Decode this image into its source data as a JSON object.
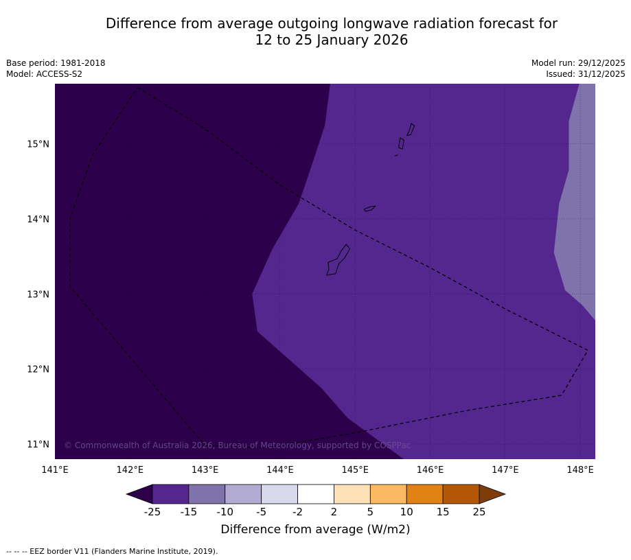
{
  "title": {
    "line1": "Difference from average outgoing longwave radiation forecast for",
    "line2": "12 to 25 January 2026"
  },
  "meta": {
    "base_period": "Base period: 1981-2018",
    "model": "Model: ACCESS-S2",
    "model_run": "Model run: 29/12/2025",
    "issued": "Issued: 31/12/2025"
  },
  "map": {
    "lon_range": [
      141.0,
      148.2
    ],
    "lat_range": [
      10.8,
      15.8
    ],
    "lon_ticks": [
      141,
      142,
      143,
      144,
      145,
      146,
      147,
      148
    ],
    "lat_ticks": [
      11,
      12,
      13,
      14,
      15
    ],
    "lon_labels": [
      "141°E",
      "142°E",
      "143°E",
      "144°E",
      "145°E",
      "146°E",
      "147°E",
      "148°E"
    ],
    "lat_labels": [
      "11°N",
      "12°N",
      "13°N",
      "14°N",
      "15°N"
    ],
    "copyright": "© Commonwealth of Australia 2026, Bureau of Meteorology, supported by COSPPac",
    "background_category": "below -25",
    "regions": [
      {
        "category": "-25 to -15",
        "color": "#54278f",
        "polygon": [
          [
            144.67,
            15.8
          ],
          [
            148.2,
            15.8
          ],
          [
            148.2,
            10.8
          ],
          [
            145.65,
            10.8
          ],
          [
            144.9,
            11.35
          ],
          [
            144.55,
            11.75
          ],
          [
            143.7,
            12.5
          ],
          [
            143.63,
            13.0
          ],
          [
            143.9,
            13.6
          ],
          [
            144.25,
            14.2
          ],
          [
            144.42,
            14.7
          ],
          [
            144.6,
            15.25
          ]
        ]
      },
      {
        "category": "-15 to -10",
        "color": "#8073ac",
        "polygon": [
          [
            147.99,
            15.8
          ],
          [
            148.2,
            15.8
          ],
          [
            148.2,
            12.65
          ],
          [
            148.03,
            12.85
          ],
          [
            147.8,
            13.05
          ],
          [
            147.65,
            13.55
          ],
          [
            147.72,
            14.2
          ],
          [
            147.85,
            14.65
          ],
          [
            147.85,
            15.3
          ]
        ]
      }
    ],
    "islands": [
      {
        "name": "Guam",
        "polygon": [
          [
            144.62,
            13.25
          ],
          [
            144.74,
            13.27
          ],
          [
            144.78,
            13.4
          ],
          [
            144.86,
            13.48
          ],
          [
            144.93,
            13.6
          ],
          [
            144.88,
            13.66
          ],
          [
            144.82,
            13.58
          ],
          [
            144.76,
            13.47
          ],
          [
            144.64,
            13.42
          ],
          [
            144.65,
            13.33
          ]
        ]
      },
      {
        "name": "Rota",
        "polygon": [
          [
            145.12,
            14.13
          ],
          [
            145.2,
            14.16
          ],
          [
            145.27,
            14.17
          ],
          [
            145.22,
            14.12
          ],
          [
            145.14,
            14.1
          ]
        ]
      },
      {
        "name": "Tinian",
        "polygon": [
          [
            145.58,
            14.95
          ],
          [
            145.63,
            14.93
          ],
          [
            145.65,
            15.05
          ],
          [
            145.6,
            15.08
          ]
        ]
      },
      {
        "name": "Saipan",
        "polygon": [
          [
            145.69,
            15.11
          ],
          [
            145.74,
            15.12
          ],
          [
            145.79,
            15.24
          ],
          [
            145.75,
            15.27
          ],
          [
            145.72,
            15.17
          ]
        ]
      },
      {
        "name": "Aguijan",
        "polygon": [
          [
            145.53,
            14.84
          ],
          [
            145.57,
            14.85
          ]
        ]
      }
    ],
    "eez_border": [
      [
        142.1,
        15.75
      ],
      [
        143.0,
        15.2
      ],
      [
        144.0,
        14.45
      ],
      [
        145.0,
        13.85
      ],
      [
        146.0,
        13.35
      ],
      [
        147.0,
        12.8
      ],
      [
        148.1,
        12.25
      ],
      [
        147.75,
        11.65
      ],
      [
        146.5,
        11.45
      ],
      [
        145.0,
        11.15
      ],
      [
        143.8,
        10.95
      ],
      [
        143.0,
        10.98
      ],
      [
        141.2,
        13.1
      ],
      [
        141.2,
        14.0
      ],
      [
        141.5,
        14.85
      ],
      [
        142.1,
        15.75
      ]
    ]
  },
  "colorbar": {
    "title": "Difference from average (W/m2)",
    "ticks": [
      "-25",
      "-15",
      "-10",
      "-5",
      "-2",
      "2",
      "5",
      "10",
      "15",
      "25"
    ],
    "under_color": "#2d004b",
    "over_color": "#7f3b08",
    "colors": [
      "#54278f",
      "#8073ac",
      "#b2abd2",
      "#d8daeb",
      "#ffffff",
      "#fee0b6",
      "#fdb863",
      "#e08214",
      "#b35806"
    ]
  },
  "footnote": "-- -- -- EEZ border V11 (Flanders Marine Institute, 2019)."
}
